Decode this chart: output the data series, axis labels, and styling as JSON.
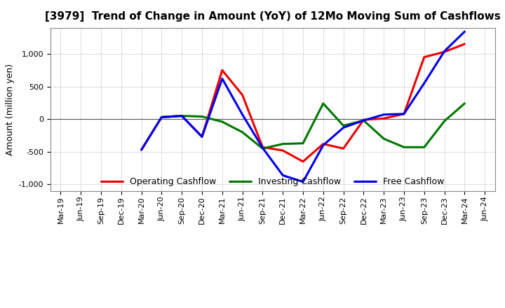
{
  "title": "[3979]  Trend of Change in Amount (YoY) of 12Mo Moving Sum of Cashflows",
  "ylabel": "Amount (million yen)",
  "x_labels": [
    "Mar-19",
    "Jun-19",
    "Sep-19",
    "Dec-19",
    "Mar-20",
    "Jun-20",
    "Sep-20",
    "Dec-20",
    "Mar-21",
    "Jun-21",
    "Sep-21",
    "Dec-21",
    "Mar-22",
    "Jun-22",
    "Sep-22",
    "Dec-22",
    "Mar-23",
    "Jun-23",
    "Sep-23",
    "Dec-23",
    "Mar-24",
    "Jun-24"
  ],
  "operating_cashflow": [
    null,
    null,
    null,
    null,
    -470,
    30,
    50,
    -270,
    750,
    370,
    -430,
    -480,
    -650,
    -380,
    -450,
    -10,
    10,
    80,
    950,
    1030,
    1150,
    null
  ],
  "investing_cashflow": [
    null,
    null,
    null,
    null,
    null,
    30,
    50,
    40,
    -40,
    -200,
    -450,
    -380,
    -370,
    240,
    -100,
    -20,
    -300,
    -430,
    -430,
    -30,
    240,
    null
  ],
  "free_cashflow": [
    null,
    null,
    null,
    null,
    -470,
    30,
    50,
    -270,
    620,
    70,
    -440,
    -860,
    -960,
    -400,
    -130,
    -20,
    70,
    80,
    550,
    1040,
    1340,
    null
  ],
  "operating_color": "#ee0000",
  "investing_color": "#007700",
  "free_color": "#0000ee",
  "ylim": [
    -1100,
    1400
  ],
  "yticks": [
    -1000,
    -500,
    0,
    500,
    1000
  ],
  "background_color": "#ffffff",
  "grid_color": "#999999",
  "linewidth": 2.2,
  "title_fontsize": 11,
  "axis_label_fontsize": 9,
  "tick_fontsize": 8,
  "legend_fontsize": 9
}
